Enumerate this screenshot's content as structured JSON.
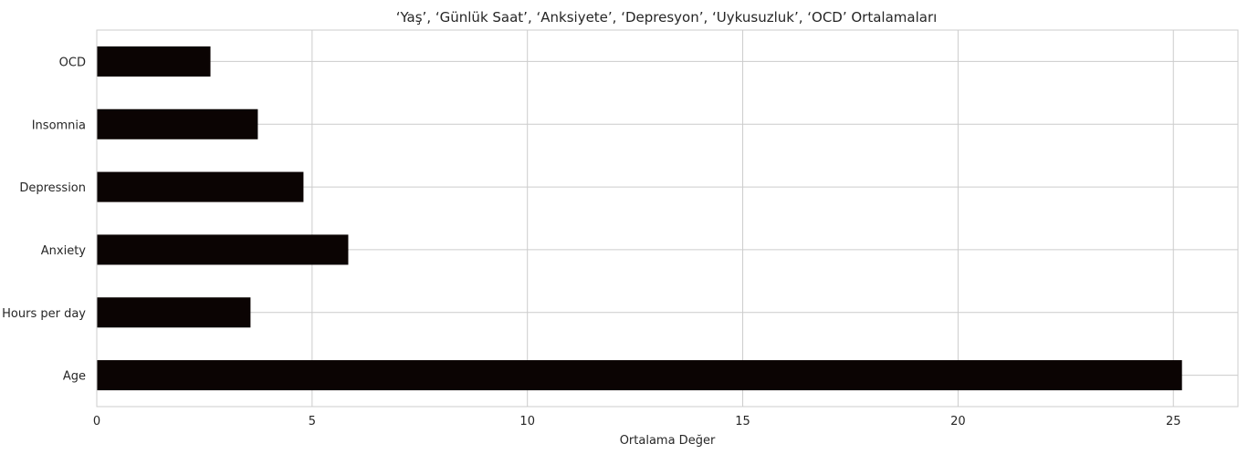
{
  "chart_data": {
    "type": "bar",
    "orientation": "horizontal",
    "title": "‘Yaş’, ‘Günlük Saat’, ‘Anksiyete’, ‘Depresyon’, ‘Uykusuzluk’, ‘OCD’ Ortalamaları",
    "xlabel": "Ortalama Değer",
    "ylabel": "",
    "categories": [
      "Age",
      "Hours per day",
      "Anxiety",
      "Depression",
      "Insomnia",
      "OCD"
    ],
    "values": [
      25.2,
      3.57,
      5.84,
      4.8,
      3.74,
      2.64
    ],
    "xlim": [
      0,
      26.5
    ],
    "xticks": [
      0,
      5,
      10,
      15,
      20,
      25
    ],
    "grid": true,
    "bar_color": "#0b0403"
  }
}
